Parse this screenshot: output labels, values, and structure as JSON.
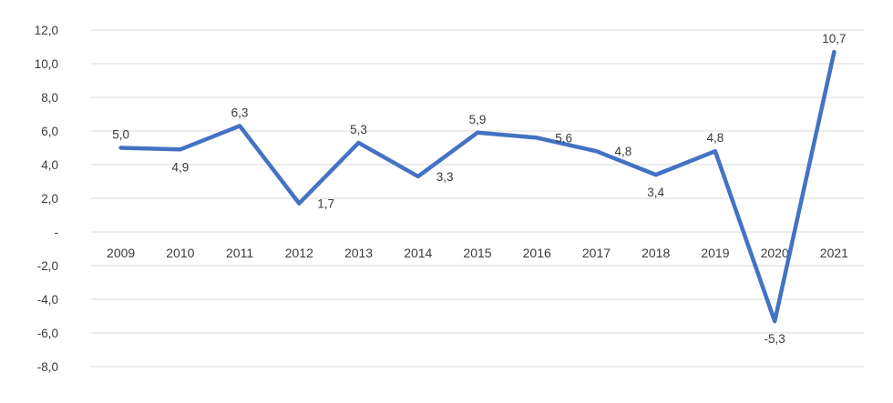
{
  "chart_data": {
    "type": "line",
    "title": "",
    "xlabel": "",
    "ylabel": "",
    "legend": false,
    "grid": true,
    "ylim": [
      -8,
      12
    ],
    "y_tick_step": 2,
    "categories": [
      "2009",
      "2010",
      "2011",
      "2012",
      "2013",
      "2014",
      "2015",
      "2016",
      "2017",
      "2018",
      "2019",
      "2020",
      "2021"
    ],
    "values": [
      5.0,
      4.9,
      6.3,
      1.7,
      5.3,
      3.3,
      5.9,
      5.6,
      4.8,
      3.4,
      4.8,
      -5.3,
      10.7
    ],
    "point_labels": [
      "5,0",
      "4,9",
      "6,3",
      "1,7",
      "5,3",
      "3,3",
      "5,9",
      "5,6",
      "4,8",
      "3,4",
      "4,8",
      "-5,3",
      "10,7"
    ],
    "point_label_positions": [
      "above",
      "below",
      "above",
      "right",
      "above",
      "right",
      "above",
      "right",
      "right",
      "below",
      "above",
      "below",
      "above"
    ],
    "y_ticks": [
      {
        "value": 12,
        "label": "12,0"
      },
      {
        "value": 10,
        "label": "10,0"
      },
      {
        "value": 8,
        "label": "8,0"
      },
      {
        "value": 6,
        "label": "6,0"
      },
      {
        "value": 4,
        "label": "4,0"
      },
      {
        "value": 2,
        "label": "2,0"
      },
      {
        "value": 0,
        "label": "-"
      },
      {
        "value": -2,
        "label": "-2,0"
      },
      {
        "value": -4,
        "label": "-4,0"
      },
      {
        "value": -6,
        "label": "-6,0"
      },
      {
        "value": -8,
        "label": "-8,0"
      }
    ],
    "colors": {
      "line": "#4472c4",
      "grid": "#d9d9d9",
      "text": "#3a3a3a",
      "background": "#ffffff"
    }
  }
}
